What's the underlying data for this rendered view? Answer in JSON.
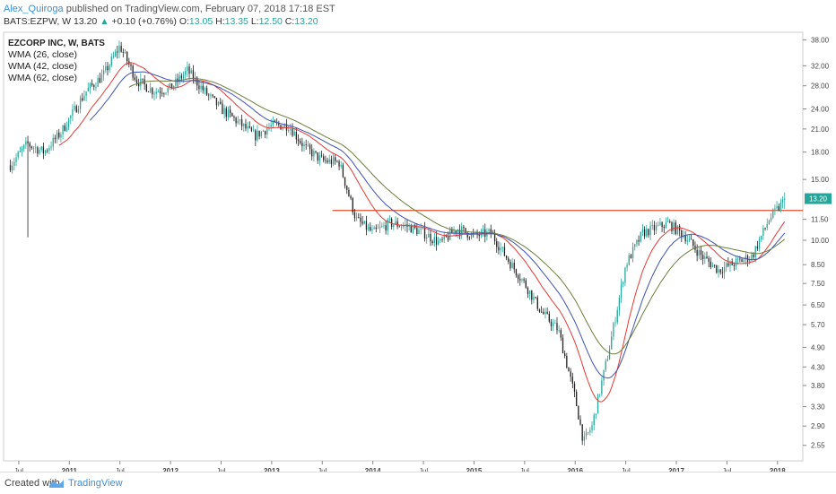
{
  "header": {
    "author": "Alex_Quiroga",
    "published": "published on TradingView.com, February 07, 2018 17:18 EST",
    "symbol": "BATS:EZPW, W",
    "last": "13.20",
    "change": "+0.10 (+0.76%)",
    "o_label": "O:",
    "o": "13.05",
    "h_label": "H:",
    "h": "13.35",
    "l_label": "L:",
    "l": "12.50",
    "c_label": "C:",
    "c": "13.20"
  },
  "legend": {
    "title": "EZCORP INC, W, BATS",
    "items": [
      "WMA (26, close)",
      "WMA (42, close)",
      "WMA (62, close)"
    ]
  },
  "footer": {
    "created": "Created with",
    "brand": "TradingView"
  },
  "colors": {
    "up": "#26a69a",
    "down": "#222222",
    "wma26": "#e53935",
    "wma42": "#3f51b5",
    "wma62": "#6b7d3a",
    "hline": "#e8502c",
    "price_tag": "#26a69a"
  },
  "chart_data": {
    "type": "candlestick",
    "y_scale": "log",
    "ylim": [
      2.3,
      40
    ],
    "price_ticks": [
      "38.00",
      "32.00",
      "28.00",
      "24.00",
      "21.00",
      "18.00",
      "15.00",
      "13.20",
      "11.50",
      "10.00",
      "8.50",
      "7.50",
      "6.50",
      "5.70",
      "4.90",
      "4.30",
      "3.80",
      "3.30",
      "2.90",
      "2.55"
    ],
    "time_ticks": [
      "Jul",
      "2011",
      "Jul",
      "2012",
      "Jul",
      "2013",
      "Jul",
      "2014",
      "Jul",
      "2015",
      "Jul",
      "2016",
      "Jul",
      "2017",
      "Jul",
      "2018"
    ],
    "current_price": 13.2,
    "horizontal_line": 12.2,
    "close_path": [
      [
        "2010-06",
        16.5
      ],
      [
        "2010-08",
        19.0
      ],
      [
        "2010-10",
        18.0
      ],
      [
        "2010-12",
        20.5
      ],
      [
        "2011-03",
        27.0
      ],
      [
        "2011-05",
        30.0
      ],
      [
        "2011-07",
        36.5
      ],
      [
        "2011-09",
        29.0
      ],
      [
        "2011-11",
        27.0
      ],
      [
        "2012-01",
        27.5
      ],
      [
        "2012-03",
        31.0
      ],
      [
        "2012-05",
        27.0
      ],
      [
        "2012-07",
        24.0
      ],
      [
        "2012-09",
        22.0
      ],
      [
        "2012-11",
        20.0
      ],
      [
        "2013-01",
        21.5
      ],
      [
        "2013-03",
        21.5
      ],
      [
        "2013-05",
        18.5
      ],
      [
        "2013-07",
        17.0
      ],
      [
        "2013-09",
        16.8
      ],
      [
        "2013-11",
        11.5
      ],
      [
        "2014-01",
        10.5
      ],
      [
        "2014-03",
        11.2
      ],
      [
        "2014-05",
        11.0
      ],
      [
        "2014-07",
        10.5
      ],
      [
        "2014-09",
        9.8
      ],
      [
        "2014-11",
        10.8
      ],
      [
        "2015-01",
        10.3
      ],
      [
        "2015-03",
        10.5
      ],
      [
        "2015-05",
        8.8
      ],
      [
        "2015-07",
        7.5
      ],
      [
        "2015-09",
        6.2
      ],
      [
        "2015-11",
        5.5
      ],
      [
        "2016-01",
        3.5
      ],
      [
        "2016-02",
        2.6
      ],
      [
        "2016-03",
        2.9
      ],
      [
        "2016-05",
        4.8
      ],
      [
        "2016-07",
        8.5
      ],
      [
        "2016-09",
        10.5
      ],
      [
        "2016-12",
        11.2
      ],
      [
        "2017-02",
        10.3
      ],
      [
        "2017-04",
        9.0
      ],
      [
        "2017-06",
        8.2
      ],
      [
        "2017-08",
        8.6
      ],
      [
        "2017-10",
        9.0
      ],
      [
        "2017-12",
        11.5
      ],
      [
        "2018-02",
        13.2
      ]
    ]
  }
}
